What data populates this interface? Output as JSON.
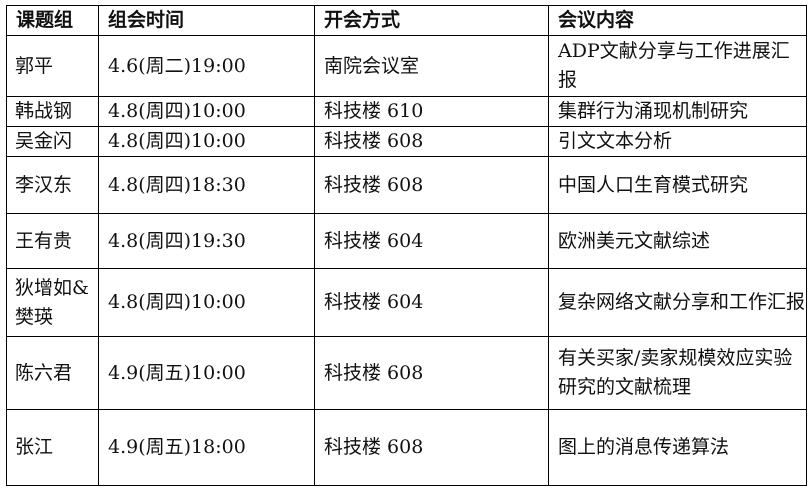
{
  "headers": [
    "课题组",
    "组会时间",
    "开会方式",
    "会议内容"
  ],
  "rows": [
    {
      "group": "郭平",
      "time": "4.6(周二)19:00",
      "place": "南院会议室",
      "content": "ADP文献分享与工作进展汇报"
    },
    {
      "group": "韩战钢",
      "time": "4.8(周四)10:00",
      "place": "科技楼 610",
      "content": "集群行为涌现机制研究"
    },
    {
      "group": "吴金闪",
      "time": "4.8(周四)10:00",
      "place": "科技楼 608",
      "content": "引文文本分析"
    },
    {
      "group": "李汉东",
      "time": "4.8(周四)18:30",
      "place": "科技楼 608",
      "content": "中国人口生育模式研究"
    },
    {
      "group": "王有贵",
      "time": "4.8(周四)19:30",
      "place": "科技楼 604",
      "content": "欧洲美元文献综述"
    },
    {
      "group": "狄增如&樊瑛",
      "time": "4.8(周四)10:00",
      "place": "科技楼 604",
      "content": "复杂网络文献分享和工作汇报"
    },
    {
      "group": "陈六君",
      "time": "4.9(周五)10:00",
      "place": "科技楼 608",
      "content": "有关买家/卖家规模效应实验研究的文献梳理"
    },
    {
      "group": "张江",
      "time": "4.9(周五)18:00",
      "place": "科技楼 608",
      "content": "图上的消息传递算法"
    }
  ]
}
